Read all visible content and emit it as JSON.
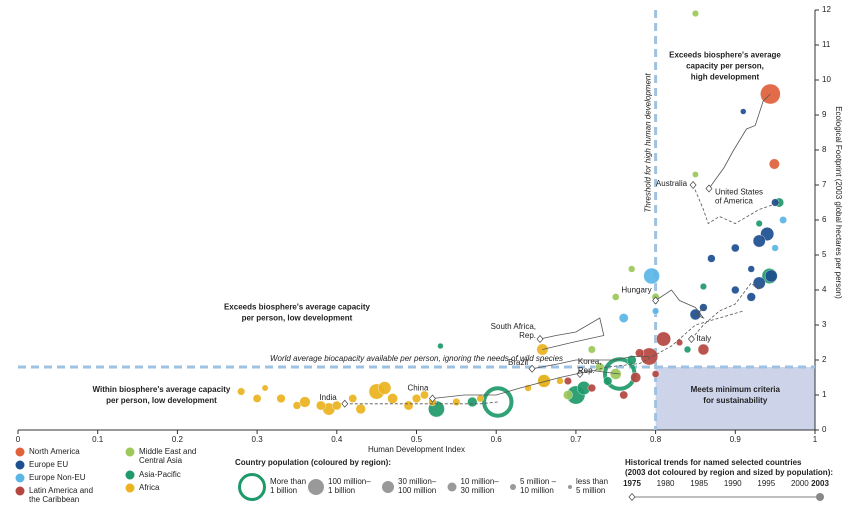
{
  "chart_data": {
    "type": "bubble",
    "x_label": "Human Development Index",
    "y_label": "Ecological Footprint (2003 global hectares per person)",
    "xlim": [
      0,
      1
    ],
    "ylim": [
      0,
      12
    ],
    "xticks": [
      0,
      0.1,
      0.2,
      0.3,
      0.4,
      0.5,
      0.6,
      0.7,
      0.8,
      0.9,
      1
    ],
    "yticks": [
      0,
      1,
      2,
      3,
      4,
      5,
      6,
      7,
      8,
      9,
      10,
      11,
      12
    ],
    "threshold_x": 0.8,
    "biocapacity_y": 1.8,
    "threshold_label": "Threshold for high human development",
    "biocapacity_label": "World average biocapacity available per person, ignoring the needs of wild species",
    "quadrants": {
      "top_right": [
        "Exceeds biosphere's average",
        "capacity per person,",
        "high development"
      ],
      "top_left": [
        "Exceeds biosphere's average capacity",
        "per person, low development"
      ],
      "bottom_left": [
        "Within biosphere's average capacity",
        "per person, low development"
      ],
      "bottom_right": [
        "Meets minimum criteria",
        "for sustainability"
      ]
    },
    "series": [
      {
        "name": [
          "North America"
        ],
        "color": "#e0603a",
        "x": [
          0.944,
          0.949
        ],
        "y": [
          9.6,
          7.6
        ],
        "population": [
          290,
          32
        ]
      },
      {
        "name": [
          "Europe EU"
        ],
        "color": "#1d4f91",
        "x": [
          0.85,
          0.86,
          0.87,
          0.9,
          0.9,
          0.91,
          0.92,
          0.93,
          0.93,
          0.94,
          0.945,
          0.95,
          0.92
        ],
        "y": [
          3.3,
          3.5,
          4.9,
          4.0,
          5.2,
          9.1,
          4.6,
          4.2,
          5.4,
          5.6,
          4.4,
          6.5,
          3.8
        ],
        "population": [
          38,
          10,
          10,
          10,
          11,
          2,
          5,
          60,
          60,
          80,
          60,
          8,
          16
        ]
      },
      {
        "name": [
          "Europe Non-EU"
        ],
        "color": "#5bb6e6",
        "x": [
          0.76,
          0.795,
          0.8,
          0.95,
          0.96
        ],
        "y": [
          3.2,
          4.4,
          3.4,
          5.2,
          6.0
        ],
        "population": [
          20,
          145,
          4,
          5,
          7
        ]
      },
      {
        "name": [
          "Latin America and",
          "the Caribbean"
        ],
        "color": "#b5463f",
        "x": [
          0.69,
          0.72,
          0.76,
          0.775,
          0.78,
          0.792,
          0.8,
          0.81,
          0.83,
          0.86
        ],
        "y": [
          1.4,
          1.2,
          1.0,
          1.5,
          2.2,
          2.1,
          1.6,
          2.6,
          2.5,
          2.3
        ],
        "population": [
          8,
          10,
          12,
          30,
          15,
          180,
          6,
          100,
          4,
          38
        ]
      },
      {
        "name": [
          "Middle East and",
          "Central Asia"
        ],
        "color": "#9dc85a",
        "x": [
          0.66,
          0.69,
          0.72,
          0.73,
          0.75,
          0.75,
          0.77,
          0.8,
          0.85,
          0.85
        ],
        "y": [
          1.4,
          1.0,
          2.3,
          1.8,
          1.6,
          3.8,
          4.6,
          3.8,
          7.3,
          11.9
        ],
        "population": [
          70,
          20,
          8,
          15,
          40,
          6,
          5,
          8,
          3,
          4
        ]
      },
      {
        "name": [
          "Asia-Pacific"
        ],
        "color": "#1e9a6a",
        "x": [
          0.525,
          0.53,
          0.57,
          0.602,
          0.7,
          0.71,
          0.74,
          0.755,
          0.77,
          0.84,
          0.86,
          0.93,
          0.943,
          0.955
        ],
        "y": [
          0.6,
          2.4,
          0.8,
          0.8,
          1.0,
          1.2,
          1.4,
          1.6,
          2.0,
          2.3,
          4.1,
          5.9,
          4.4,
          6.5
        ],
        "population": [
          150,
          2,
          25,
          1080,
          220,
          80,
          15,
          1300,
          20,
          5,
          4,
          4,
          127,
          20
        ]
      },
      {
        "name": [
          "Africa"
        ],
        "color": "#eab31f",
        "x": [
          0.28,
          0.3,
          0.31,
          0.33,
          0.35,
          0.36,
          0.38,
          0.39,
          0.4,
          0.42,
          0.43,
          0.45,
          0.46,
          0.47,
          0.49,
          0.5,
          0.51,
          0.52,
          0.55,
          0.58,
          0.64,
          0.658,
          0.66,
          0.68
        ],
        "y": [
          1.1,
          0.9,
          1.2,
          0.9,
          0.7,
          0.8,
          0.7,
          0.6,
          0.7,
          0.9,
          0.6,
          1.1,
          1.2,
          0.9,
          0.7,
          0.9,
          1.0,
          0.8,
          0.8,
          0.9,
          1.2,
          2.3,
          1.4,
          1.4
        ],
        "population": [
          8,
          12,
          3,
          15,
          10,
          35,
          20,
          60,
          18,
          12,
          25,
          130,
          70,
          30,
          20,
          15,
          12,
          10,
          8,
          6,
          5,
          45,
          70,
          5
        ]
      }
    ],
    "trends": [
      {
        "name": [
          "United States",
          "of America"
        ],
        "x": [
          0.867,
          0.886,
          0.898,
          0.914,
          0.925,
          0.935,
          0.944
        ],
        "y": [
          6.9,
          7.5,
          8.0,
          8.6,
          8.7,
          9.4,
          9.6
        ]
      },
      {
        "name": [
          "Australia"
        ],
        "x": [
          0.847,
          0.86,
          0.866,
          0.88,
          0.9,
          0.93,
          0.955
        ],
        "y": [
          7.0,
          6.3,
          5.9,
          6.1,
          5.9,
          6.3,
          6.5
        ]
      },
      {
        "name": [
          "Hungary"
        ],
        "x": [
          0.8,
          0.82,
          0.83,
          0.85,
          0.86,
          0.85,
          0.862
        ],
        "y": [
          3.7,
          4.0,
          3.7,
          3.5,
          3.2,
          3.3,
          3.5
        ]
      },
      {
        "name": [
          "Italy"
        ],
        "x": [
          0.845,
          0.86,
          0.88,
          0.9,
          0.92,
          0.93,
          0.934
        ],
        "y": [
          2.6,
          3.0,
          3.4,
          3.6,
          4.2,
          4.0,
          4.2
        ]
      },
      {
        "name": [
          "South Africa,",
          "Rep."
        ],
        "x": [
          0.655,
          0.675,
          0.7,
          0.73,
          0.735,
          0.695,
          0.658
        ],
        "y": [
          2.6,
          2.7,
          2.8,
          3.2,
          2.7,
          2.5,
          2.3
        ]
      },
      {
        "name": [
          "Korea,",
          "Rep."
        ],
        "x": [
          0.705,
          0.74,
          0.78,
          0.82,
          0.85,
          0.88,
          0.91
        ],
        "y": [
          1.6,
          1.8,
          1.9,
          2.4,
          3.0,
          3.2,
          3.4
        ]
      },
      {
        "name": [
          "Brazil"
        ],
        "x": [
          0.645,
          0.68,
          0.7,
          0.72,
          0.75,
          0.77,
          0.792
        ],
        "y": [
          1.75,
          1.9,
          2.0,
          2.0,
          2.0,
          2.1,
          2.1
        ]
      },
      {
        "name": [
          "India"
        ],
        "x": [
          0.41,
          0.44,
          0.48,
          0.51,
          0.55,
          0.58,
          0.602
        ],
        "y": [
          0.75,
          0.75,
          0.75,
          0.75,
          0.75,
          0.75,
          0.8
        ]
      },
      {
        "name": [
          "China"
        ],
        "x": [
          0.52,
          0.56,
          0.6,
          0.63,
          0.68,
          0.72,
          0.755
        ],
        "y": [
          0.9,
          1.0,
          1.0,
          1.2,
          1.5,
          1.7,
          1.6
        ]
      }
    ],
    "population_legend": {
      "title": "Country population (coloured by region):",
      "items": [
        [
          "More than",
          "1 billion"
        ],
        [
          "100 million–",
          "1 billion"
        ],
        [
          "30 million–",
          "100 million"
        ],
        [
          "10 million–",
          "30 million"
        ],
        [
          "5 million –",
          "10 million"
        ],
        [
          "less than",
          "5 million"
        ]
      ]
    },
    "trend_legend": {
      "title": [
        "Historical trends for named selected countries",
        "(2003 dot coloured by region and sized by population):"
      ],
      "years": [
        1975,
        1980,
        1985,
        1990,
        1995,
        2000,
        2003
      ]
    }
  }
}
